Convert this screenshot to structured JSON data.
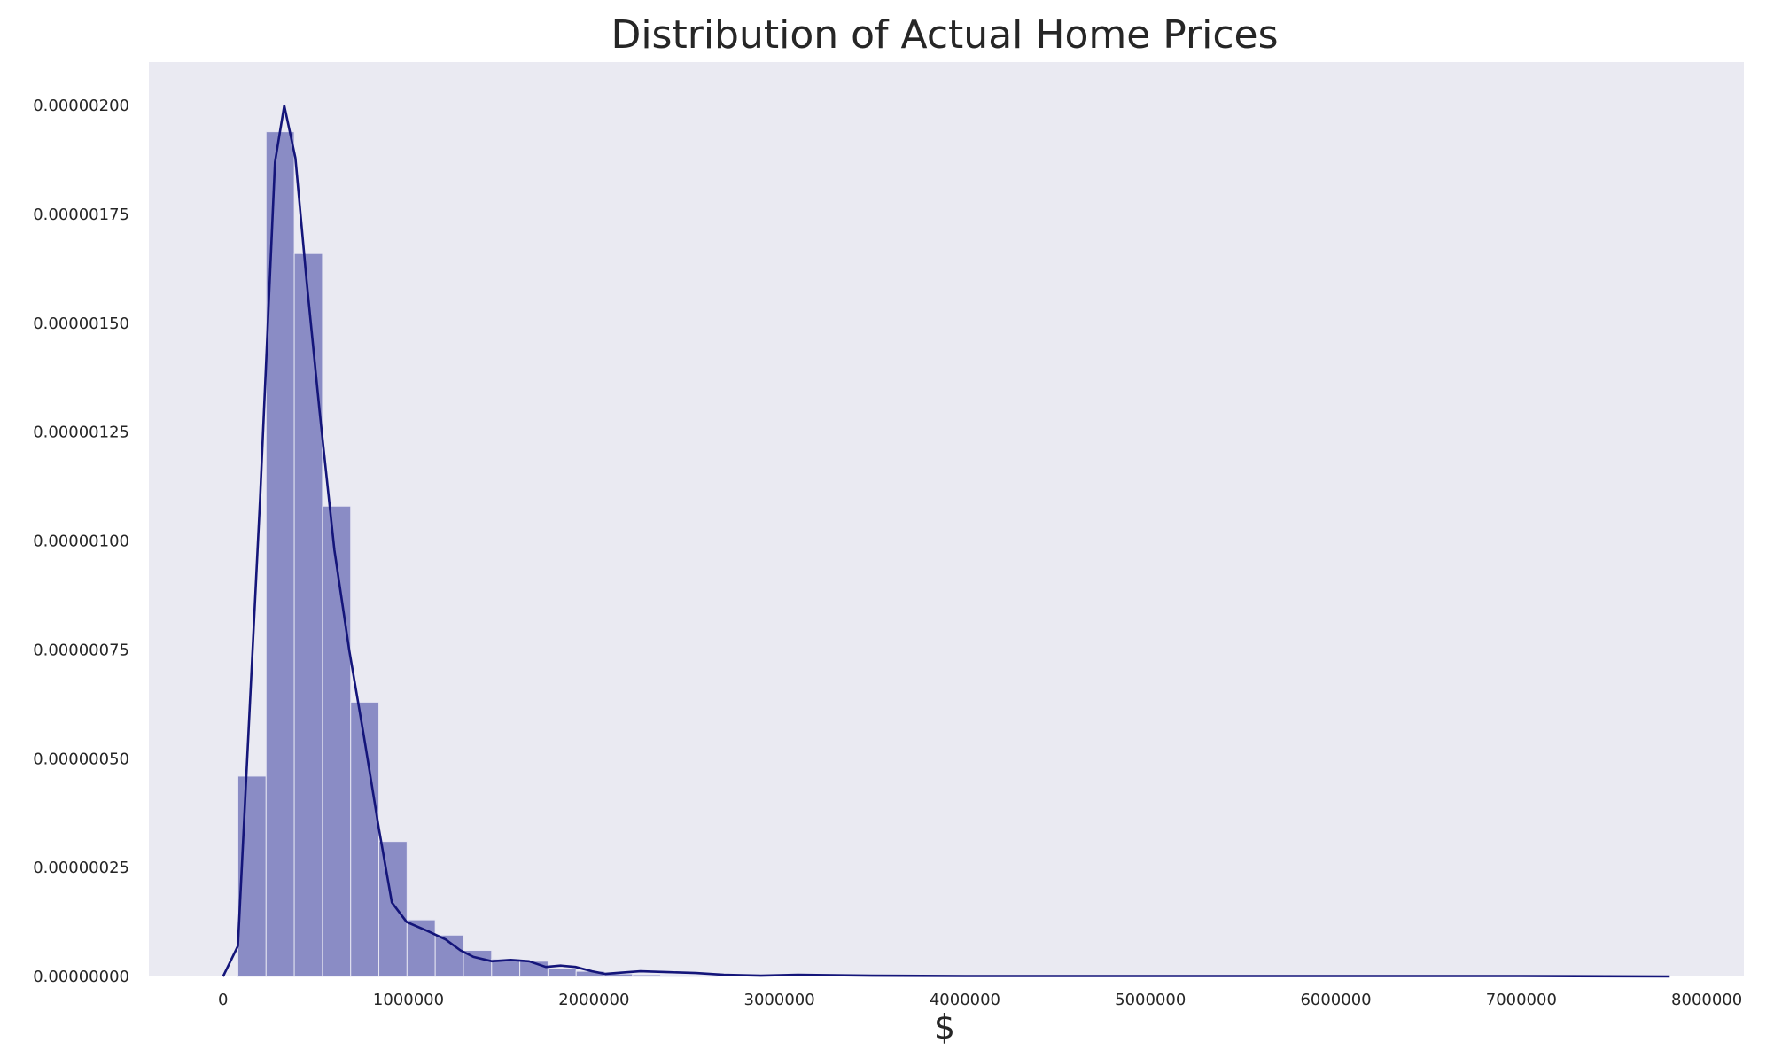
{
  "chart_data": {
    "type": "bar",
    "title": "Distribution of Actual Home Prices",
    "xlabel": "$",
    "ylabel": "",
    "xlim": [
      -400000,
      8200000
    ],
    "ylim": [
      0,
      2.1e-06
    ],
    "xticks": [
      0,
      1000000,
      2000000,
      3000000,
      4000000,
      5000000,
      6000000,
      7000000,
      8000000
    ],
    "xtick_labels": [
      "0",
      "1000000",
      "2000000",
      "3000000",
      "4000000",
      "5000000",
      "6000000",
      "7000000",
      "8000000"
    ],
    "yticks": [
      0,
      2.5e-07,
      5e-07,
      7.5e-07,
      1e-06,
      1.25e-06,
      1.5e-06,
      1.75e-06,
      2e-06
    ],
    "ytick_labels": [
      "0.00000000",
      "0.00000025",
      "0.00000050",
      "0.00000075",
      "0.00000100",
      "0.00000125",
      "0.00000150",
      "0.00000175",
      "0.00000200"
    ],
    "grid": false,
    "histogram": {
      "bin_edges": [
        80000,
        232000,
        384000,
        536000,
        688000,
        840000,
        992000,
        1144000,
        1296000,
        1448000,
        1600000,
        1752000,
        1904000,
        2056000,
        2208000,
        2360000,
        2512000,
        2664000
      ],
      "densities": [
        4.6e-07,
        1.94e-06,
        1.66e-06,
        1.08e-06,
        6.3e-07,
        3.1e-07,
        1.3e-07,
        9.5e-08,
        6e-08,
        4e-08,
        3.5e-08,
        1.8e-08,
        1.2e-08,
        6e-09,
        4e-09,
        3e-09,
        2e-09
      ],
      "color": "#8a8cc5",
      "edge_color": "#e6e6f2"
    },
    "kde": {
      "x": [
        0,
        80000,
        200000,
        280000,
        330000,
        390000,
        450000,
        520000,
        600000,
        680000,
        760000,
        840000,
        910000,
        990000,
        1100000,
        1200000,
        1280000,
        1350000,
        1450000,
        1550000,
        1650000,
        1740000,
        1820000,
        1900000,
        1990000,
        2060000,
        2120000,
        2250000,
        2400000,
        2550000,
        2700000,
        2900000,
        3100000,
        3500000,
        4000000,
        5000000,
        6000000,
        7000000,
        7800000
      ],
      "y": [
        0,
        7e-08,
        1.1e-06,
        1.87e-06,
        2e-06,
        1.88e-06,
        1.6e-06,
        1.3e-06,
        9.8e-07,
        7.5e-07,
        5.5e-07,
        3.4e-07,
        1.7e-07,
        1.25e-07,
        1.05e-07,
        8.5e-08,
        6e-08,
        4.5e-08,
        3.5e-08,
        3.8e-08,
        3.5e-08,
        2.2e-08,
        2.5e-08,
        2.2e-08,
        1.2e-08,
        6e-09,
        8e-09,
        1.2e-08,
        1e-08,
        8e-09,
        4e-09,
        2e-09,
        4e-09,
        2e-09,
        1e-09,
        1e-09,
        1e-09,
        1e-09,
        0
      ],
      "color": "#14157a"
    },
    "background_color": "#eaeaf2"
  }
}
